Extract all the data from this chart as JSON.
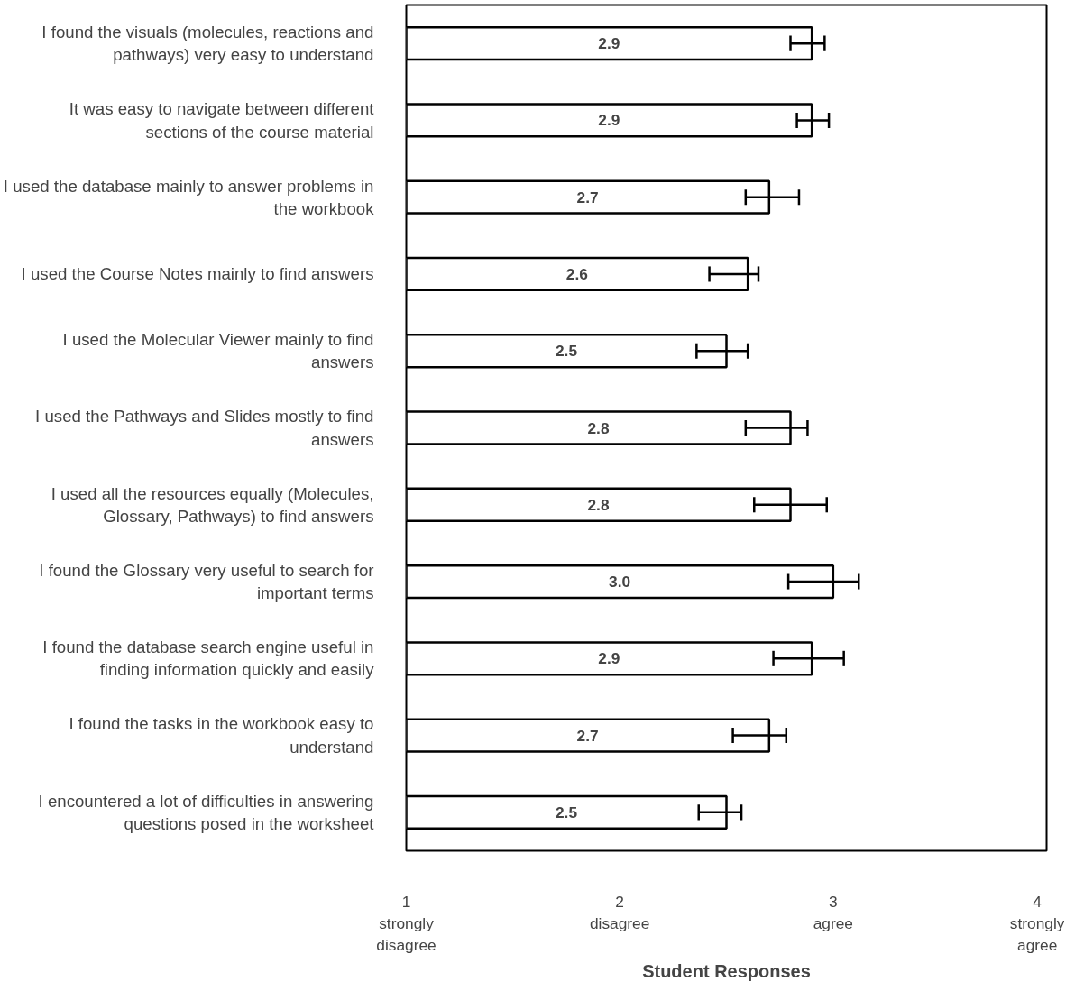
{
  "chart_data": {
    "type": "bar",
    "orientation": "horizontal",
    "xlabel": "Student Responses",
    "categories": [
      "I found the visuals (molecules, reactions and pathways) very easy to understand",
      "It was easy to navigate between different sections of the course material",
      "I used the database mainly to answer problems in the workbook",
      "I used the Course Notes mainly to find answers",
      "I used the Molecular Viewer mainly to find answers",
      "I used the Pathways and Slides mostly to find answers",
      "I used all the resources equally (Molecules, Glossary, Pathways) to find answers",
      "I found the Glossary very useful to search for important terms",
      "I found the database search engine useful in finding information quickly and easily",
      "I found the tasks in the workbook easy to understand",
      "I encountered a lot of difficulties in answering questions posed in the worksheet"
    ],
    "values": [
      2.9,
      2.9,
      2.7,
      2.6,
      2.5,
      2.8,
      2.8,
      3.0,
      2.9,
      2.7,
      2.5
    ],
    "errors": [
      [
        2.8,
        2.96
      ],
      [
        2.83,
        2.98
      ],
      [
        2.59,
        2.84
      ],
      [
        2.42,
        2.65
      ],
      [
        2.36,
        2.6
      ],
      [
        2.59,
        2.88
      ],
      [
        2.63,
        2.97
      ],
      [
        2.79,
        3.12
      ],
      [
        2.72,
        3.05
      ],
      [
        2.53,
        2.78
      ],
      [
        2.37,
        2.57
      ]
    ],
    "value_labels": [
      "2.9",
      "2.9",
      "2.7",
      "2.6",
      "2.5",
      "2.8",
      "2.8",
      "3.0",
      "2.9",
      "2.7",
      "2.5"
    ],
    "color": "#ffffff",
    "grid": false,
    "xlim": [
      1,
      4
    ],
    "xticks": [
      {
        "value": 1,
        "label": "1\nstrongly\ndisagree"
      },
      {
        "value": 2,
        "label": "2\ndisagree"
      },
      {
        "value": 3,
        "label": "3\nagree"
      },
      {
        "value": 4,
        "label": "4\nstrongly\nagree"
      }
    ]
  }
}
